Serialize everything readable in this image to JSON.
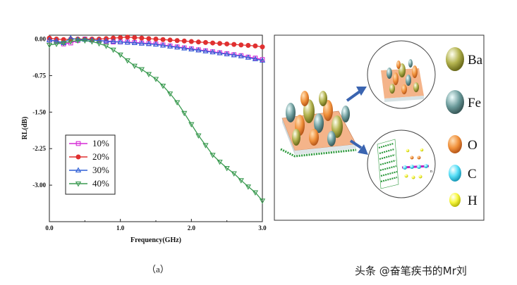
{
  "chart_data": {
    "type": "line",
    "xlabel": "Frequency(GHz)",
    "ylabel": "RL(dB)",
    "xlim": [
      0,
      3.0
    ],
    "ylim": [
      -3.75,
      0.08
    ],
    "xticks": [
      "0.0",
      "1.0",
      "2.0",
      "3.0"
    ],
    "yticks": [
      "0.00",
      "-0.75",
      "-1.50",
      "-2.25",
      "-3.00"
    ],
    "x": [
      0.0,
      0.1,
      0.2,
      0.3,
      0.4,
      0.5,
      0.6,
      0.7,
      0.8,
      0.9,
      1.0,
      1.1,
      1.2,
      1.3,
      1.4,
      1.5,
      1.6,
      1.7,
      1.8,
      1.9,
      2.0,
      2.1,
      2.2,
      2.3,
      2.4,
      2.5,
      2.6,
      2.7,
      2.8,
      2.9,
      3.0
    ],
    "series": [
      {
        "name": "10%",
        "color": "#d62ad6",
        "marker": "square",
        "values": [
          -0.02,
          -0.05,
          -0.1,
          -0.08,
          -0.03,
          0.0,
          -0.02,
          -0.03,
          -0.05,
          -0.06,
          -0.06,
          -0.06,
          -0.07,
          -0.08,
          -0.09,
          -0.1,
          -0.12,
          -0.14,
          -0.16,
          -0.18,
          -0.2,
          -0.22,
          -0.24,
          -0.26,
          -0.28,
          -0.3,
          -0.32,
          -0.34,
          -0.37,
          -0.39,
          -0.42
        ]
      },
      {
        "name": "20%",
        "color": "#e03030",
        "marker": "circle",
        "values": [
          0.02,
          0.0,
          -0.01,
          0.0,
          0.0,
          0.0,
          0.0,
          0.0,
          0.01,
          0.02,
          0.03,
          0.04,
          0.03,
          0.02,
          0.01,
          0.0,
          -0.01,
          -0.02,
          -0.03,
          -0.04,
          -0.05,
          -0.06,
          -0.07,
          -0.08,
          -0.09,
          -0.1,
          -0.11,
          -0.12,
          -0.13,
          -0.14,
          -0.16
        ]
      },
      {
        "name": "30%",
        "color": "#2e5fd6",
        "marker": "triangle-up",
        "values": [
          -0.02,
          -0.04,
          -0.08,
          0.02,
          -0.01,
          -0.01,
          -0.02,
          -0.03,
          -0.04,
          -0.05,
          -0.06,
          -0.07,
          -0.08,
          -0.09,
          -0.1,
          -0.11,
          -0.13,
          -0.15,
          -0.17,
          -0.19,
          -0.21,
          -0.23,
          -0.25,
          -0.27,
          -0.29,
          -0.31,
          -0.33,
          -0.35,
          -0.38,
          -0.41,
          -0.44
        ]
      },
      {
        "name": "40%",
        "color": "#3a9a50",
        "marker": "triangle-down",
        "values": [
          -0.12,
          -0.1,
          -0.08,
          -0.05,
          -0.03,
          -0.03,
          -0.05,
          -0.09,
          -0.14,
          -0.22,
          -0.32,
          -0.44,
          -0.55,
          -0.62,
          -0.72,
          -0.82,
          -0.96,
          -1.12,
          -1.3,
          -1.52,
          -1.75,
          -1.98,
          -2.18,
          -2.38,
          -2.52,
          -2.65,
          -2.76,
          -2.9,
          -3.03,
          -3.15,
          -3.32
        ]
      }
    ],
    "legend_position": "lower-left"
  },
  "caption": "（a）",
  "watermark": "头条 @奋笔疾书的Mr刘",
  "schematic": {
    "legend": [
      {
        "label": "Ba",
        "color": "#9a9a3a"
      },
      {
        "label": "Fe",
        "color": "#5b8a8a"
      },
      {
        "label": "O",
        "color": "#f08a3a"
      },
      {
        "label": "C",
        "color": "#2ad4f0"
      },
      {
        "label": "H",
        "color": "#f0f02a"
      }
    ],
    "sub_label": "n"
  }
}
